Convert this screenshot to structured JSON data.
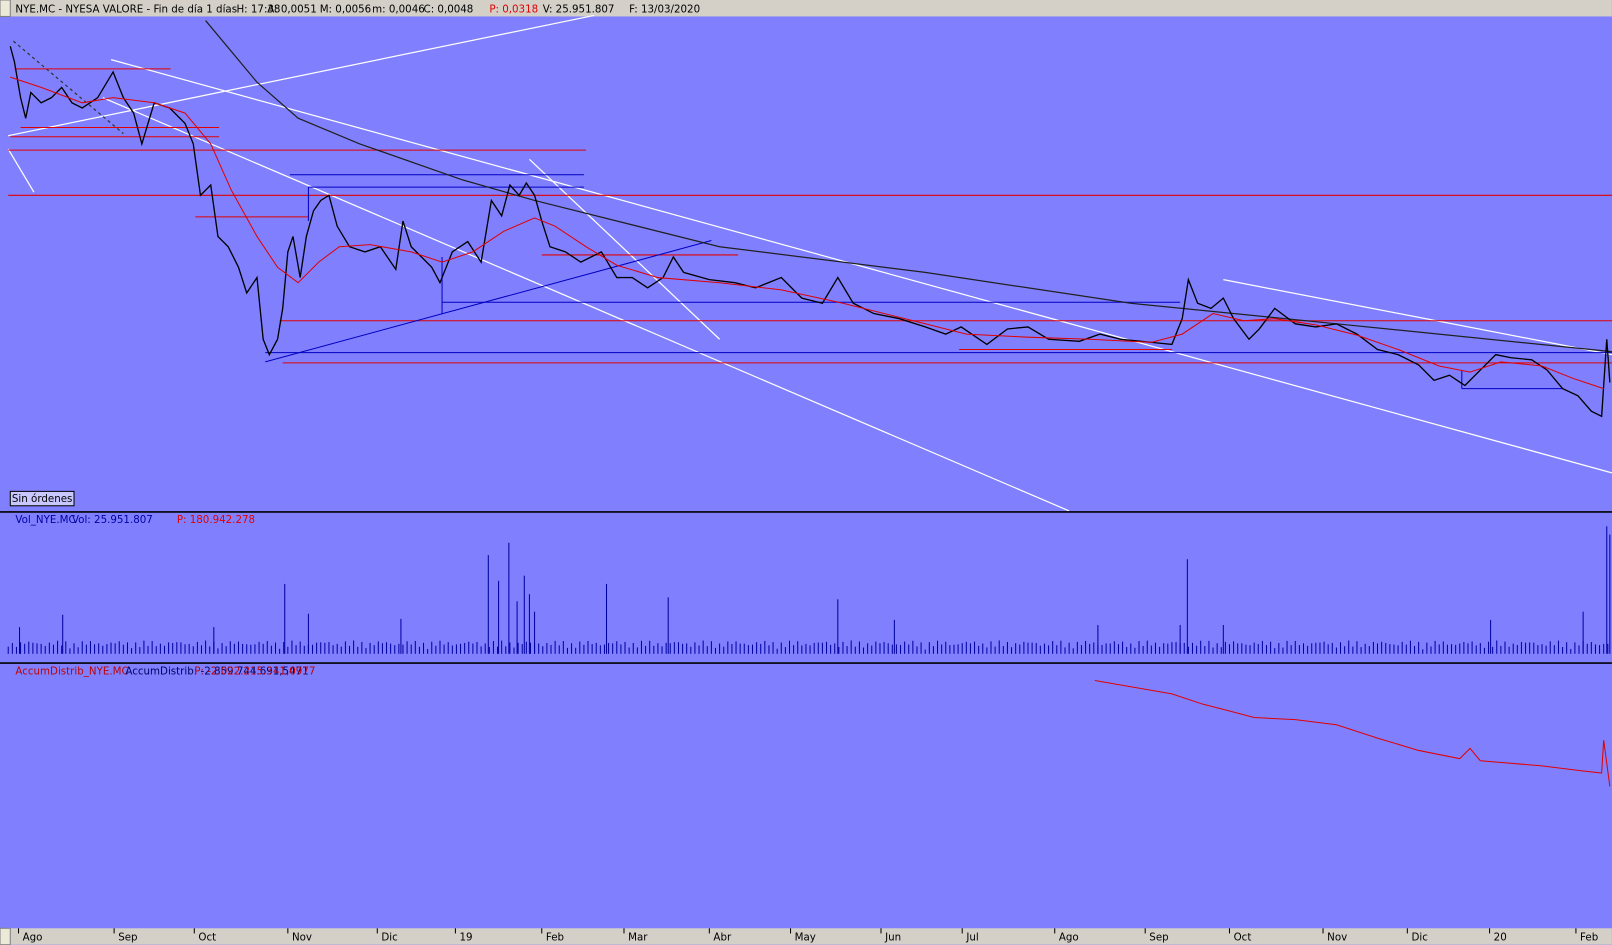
{
  "header": {
    "segments": [
      "NYE.MC - NYESA VALORE - Fin de día 1 días",
      "H: 17:38",
      "A: 0,0051",
      "M: 0,0056",
      "m: 0,0046",
      "C: 0,0048",
      "P: 0,0318",
      "V: 25.951.807",
      "F: 13/03/2020"
    ]
  },
  "button": {
    "label": "Sin órdenes"
  },
  "volume_panel": {
    "segments": [
      "Vol_NYE.MC",
      "Vol: 25.951.807",
      "P: 180.942.278"
    ]
  },
  "accum_panel": {
    "segments": [
      "AccumDistrib_NYE.MC",
      "AccumDistrib: -2.859.744.691,5471",
      "P: -2.022.215.341,0977"
    ]
  },
  "x_axis": {
    "labels": [
      "Ago",
      "Sep",
      "Oct",
      "Nov",
      "Dic",
      "19",
      "Feb",
      "Mar",
      "Abr",
      "May",
      "Jun",
      "Jul",
      "Ago",
      "Sep",
      "Oct",
      "Nov",
      "Dic",
      "20",
      "Feb"
    ]
  }
}
